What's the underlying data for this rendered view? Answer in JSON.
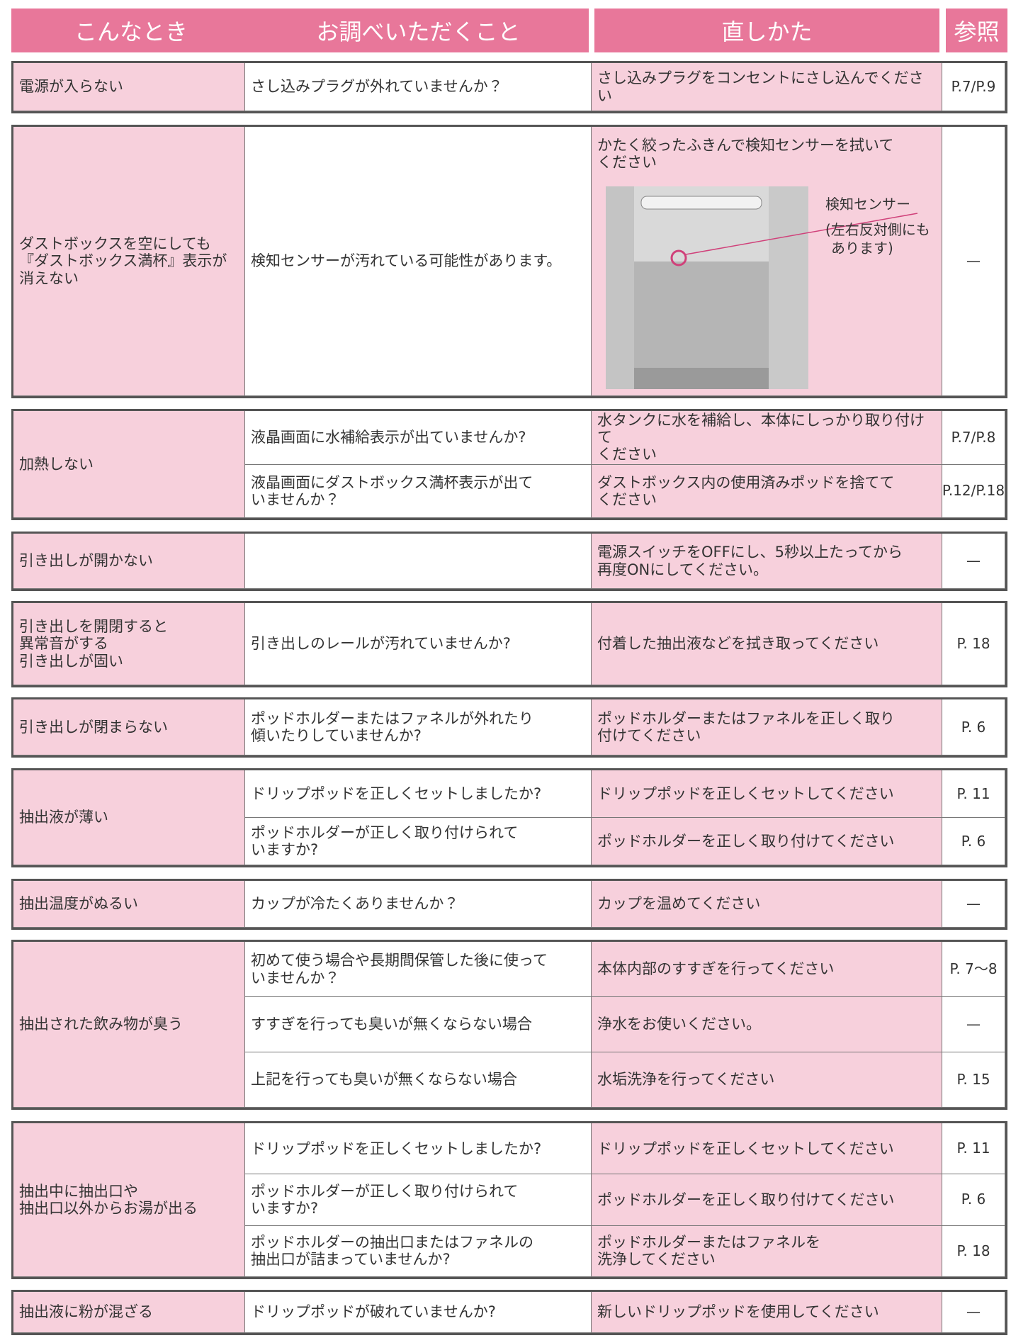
{
  "header": [
    "こんなとき",
    "お調べいただくこと",
    "直しかた",
    "参照"
  ],
  "groups": [
    {
      "symptom": "電源が入らない",
      "rows": [
        {
          "check": "さし込みプラグが外れていませんか？",
          "fix": "さし込みプラグをコンセントにさし込んでください",
          "ref": "P.7/P.9"
        }
      ]
    },
    {
      "symptom": "ダストボックスを空にしても\n『ダストボックス満杯』表示が\n消えない",
      "rows": [
        {
          "check": "検知センサーが汚れている可能性があります。",
          "fix": "かたく絞ったふきんで検知センサーを拭いて\nください",
          "ref": "—"
        }
      ],
      "figure": {
        "label": "検知センサー",
        "note": "(左右反対側にも\nあります)"
      }
    },
    {
      "symptom": "加熱しない",
      "rows": [
        {
          "check": "液晶画面に水補給表示が出ていませんか?",
          "fix": "水タンクに水を補給し、本体にしっかり取り付けて\nください",
          "ref": "P.7/P.8"
        },
        {
          "check": "液晶画面にダストボックス満杯表示が出て\nいませんか？",
          "fix": "ダストボックス内の使用済みポッドを捨てて\nください",
          "ref": "P.12/P.18"
        }
      ]
    },
    {
      "symptom": "引き出しが開かない",
      "rows": [
        {
          "check": null,
          "fix": "電源スイッチをOFFにし、5秒以上たってから\n再度ONにしてください。",
          "ref": "—"
        }
      ]
    },
    {
      "symptom": "引き出しを開閉すると\n異常音がする\n引き出しが固い",
      "rows": [
        {
          "check": "引き出しのレールが汚れていませんか?",
          "fix": "付着した抽出液などを拭き取ってください",
          "ref": "P. 18"
        }
      ]
    },
    {
      "symptom": "引き出しが閉まらない",
      "rows": [
        {
          "check": "ポッドホルダーまたはファネルが外れたり\n傾いたりしていませんか?",
          "fix": "ポッドホルダーまたはファネルを正しく取り\n付けてください",
          "ref": "P. 6"
        }
      ]
    },
    {
      "symptom": "抽出液が薄い",
      "rows": [
        {
          "check": "ドリップポッドを正しくセットしましたか?",
          "fix": "ドリップポッドを正しくセットしてください",
          "ref": "P. 11"
        },
        {
          "check": "ポッドホルダーが正しく取り付けられて\nいますか?",
          "fix": "ポッドホルダーを正しく取り付けてください",
          "ref": "P. 6"
        }
      ]
    },
    {
      "symptom": "抽出温度がぬるい",
      "rows": [
        {
          "check": "カップが冷たくありませんか？",
          "fix": "カップを温めてください",
          "ref": "—"
        }
      ]
    },
    {
      "symptom": "抽出された飲み物が臭う",
      "rows": [
        {
          "check": "初めて使う場合や長期間保管した後に使って\nいませんか？",
          "fix": "本体内部のすすぎを行ってください",
          "ref": "P. 7～8"
        },
        {
          "check": "すすぎを行っても臭いが無くならない場合",
          "fix": "浄水をお使いください。",
          "ref": "—"
        },
        {
          "check": "上記を行っても臭いが無くならない場合",
          "fix": "水垢洗浄を行ってください",
          "ref": "P. 15"
        }
      ]
    },
    {
      "symptom": "抽出中に抽出口や\n抽出口以外からお湯が出る",
      "rows": [
        {
          "check": "ドリップポッドを正しくセットしましたか?",
          "fix": "ドリップポッドを正しくセットしてください",
          "ref": "P. 11"
        },
        {
          "check": "ポッドホルダーが正しく取り付けられて\nいますか?",
          "fix": "ポッドホルダーを正しく取り付けてください",
          "ref": "P. 6"
        },
        {
          "check": "ポッドホルダーの抽出口またはファネルの\n抽出口が詰まっていませんか?",
          "fix": "ポッドホルダーまたはファネルを\n洗浄してください",
          "ref": "P. 18"
        }
      ]
    },
    {
      "symptom": "抽出液に粉が混ざる",
      "rows": [
        {
          "check": "ドリップポッドが破れていませんか?",
          "fix": "新しいドリップポッドを使用してください",
          "ref": "—"
        }
      ]
    }
  ]
}
